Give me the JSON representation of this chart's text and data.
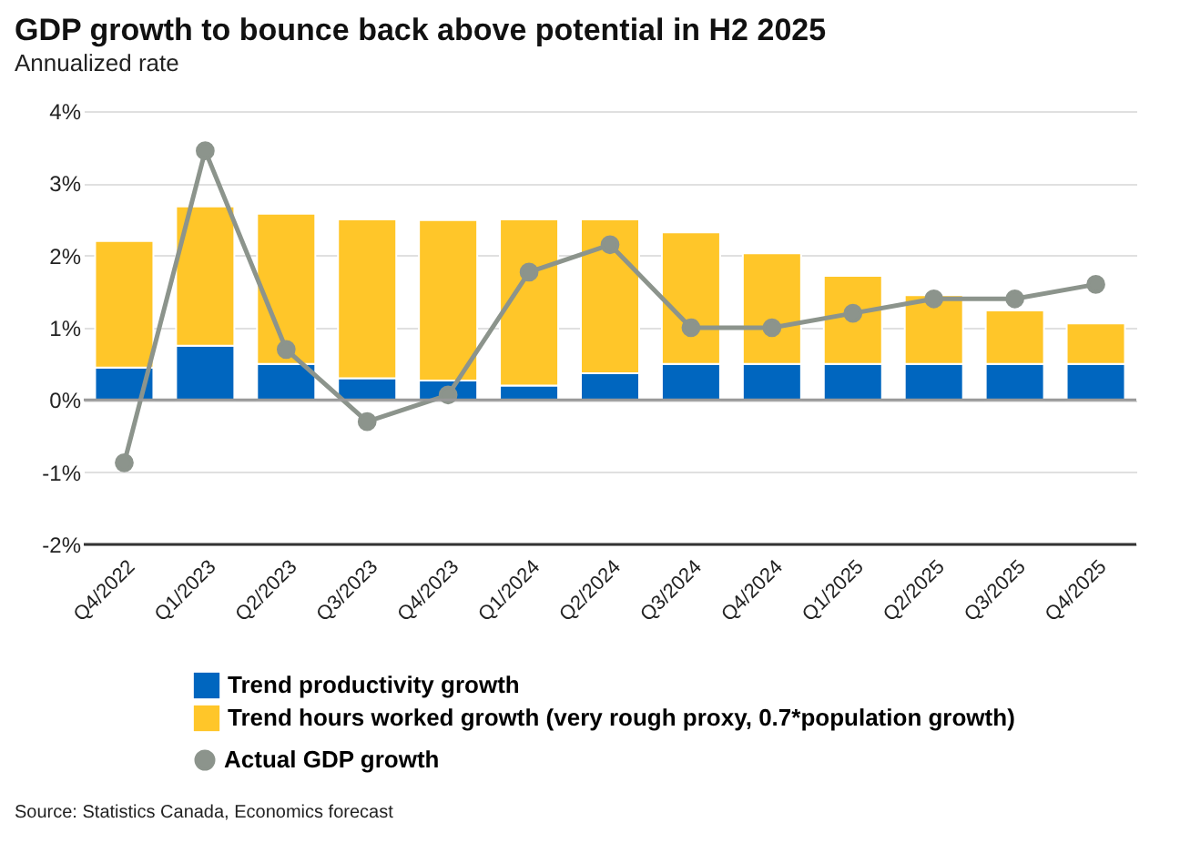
{
  "chart_data": {
    "type": "bar",
    "title": "GDP growth to bounce back above potential in H2 2025",
    "subtitle": "Annualized rate",
    "categories": [
      "Q4/2022",
      "Q1/2023",
      "Q2/2023",
      "Q3/2023",
      "Q4/2023",
      "Q1/2024",
      "Q2/2024",
      "Q3/2024",
      "Q4/2024",
      "Q1/2025",
      "Q2/2025",
      "Q3/2025",
      "Q4/2025"
    ],
    "stacked": true,
    "series": [
      {
        "name": "Trend productivity growth",
        "color": "#0066bf",
        "values": [
          0.45,
          0.75,
          0.5,
          0.3,
          0.27,
          0.2,
          0.37,
          0.5,
          0.5,
          0.5,
          0.5,
          0.5,
          0.5
        ]
      },
      {
        "name": "Trend hours worked growth (very rough proxy, 0.7*population growth)",
        "color": "#ffc629",
        "values": [
          1.75,
          1.93,
          2.08,
          2.2,
          2.22,
          2.3,
          2.13,
          1.82,
          1.53,
          1.22,
          0.95,
          0.74,
          0.56
        ]
      },
      {
        "name": "Actual GDP growth",
        "type": "line",
        "color": "#8c948c",
        "values": [
          -0.87,
          3.45,
          0.7,
          -0.3,
          0.07,
          1.77,
          2.15,
          1.0,
          1.0,
          1.2,
          1.4,
          1.4,
          1.6
        ]
      }
    ],
    "ylim": [
      -2,
      4
    ],
    "yticks": [
      {
        "value": -2,
        "label": "-2%"
      },
      {
        "value": -1,
        "label": "-1%"
      },
      {
        "value": 0,
        "label": "0%"
      },
      {
        "value": 1,
        "label": "1%"
      },
      {
        "value": 2,
        "label": "2%"
      },
      {
        "value": 3,
        "label": "3%"
      },
      {
        "value": 4,
        "label": "4%"
      }
    ],
    "ref_lines": [
      {
        "axis": "y",
        "value": 0,
        "color": "#999999"
      }
    ],
    "grid": "y",
    "legend": "bottom left",
    "marker": "circle",
    "annotations": [
      "Source: Statistics Canada, Economics forecast"
    ]
  }
}
